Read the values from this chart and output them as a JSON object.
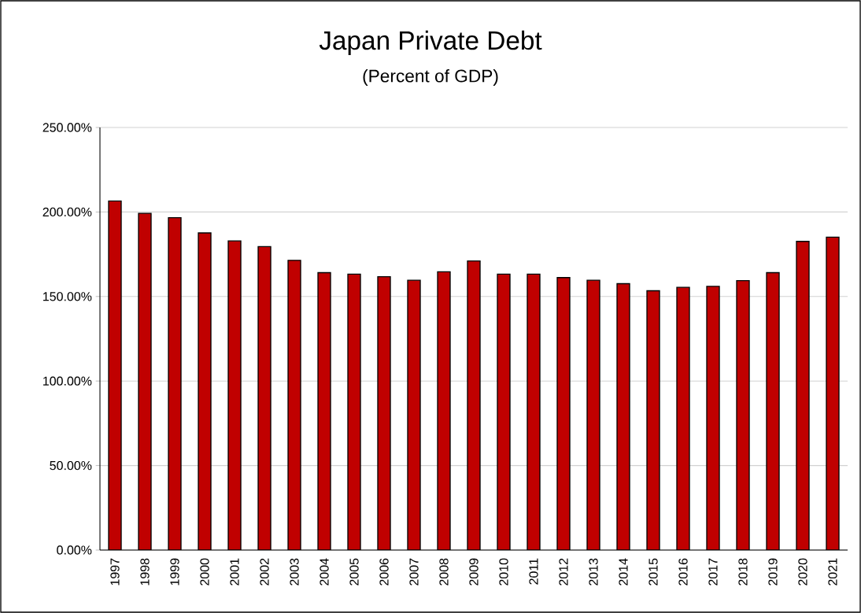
{
  "chart_data": {
    "type": "bar",
    "title": "Japan Private Debt",
    "subtitle": "(Percent of GDP)",
    "categories": [
      "1997",
      "1998",
      "1999",
      "2000",
      "2001",
      "2002",
      "2003",
      "2004",
      "2005",
      "2006",
      "2007",
      "2008",
      "2009",
      "2010",
      "2011",
      "2012",
      "2013",
      "2014",
      "2015",
      "2016",
      "2017",
      "2018",
      "2019",
      "2020",
      "2021"
    ],
    "values": [
      206.5,
      199.2,
      196.6,
      187.6,
      182.9,
      179.5,
      171.4,
      164.1,
      163.2,
      161.7,
      159.6,
      164.6,
      171.0,
      163.2,
      163.2,
      161.2,
      159.6,
      157.6,
      153.4,
      155.4,
      156.0,
      159.4,
      164.1,
      182.6,
      185.1
    ],
    "color": "#c00000",
    "ylim": [
      0,
      250
    ],
    "yticks": [
      {
        "value": 0,
        "label": "0.00%"
      },
      {
        "value": 50,
        "label": "50.00%"
      },
      {
        "value": 100,
        "label": "100.00%"
      },
      {
        "value": 150,
        "label": "150.00%"
      },
      {
        "value": 200,
        "label": "200.00%"
      },
      {
        "value": 250,
        "label": "250.00%"
      }
    ],
    "grid": "y"
  }
}
